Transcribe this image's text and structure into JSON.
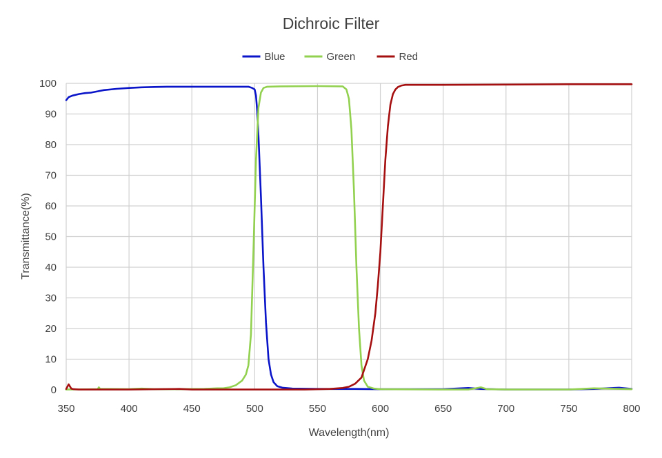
{
  "chart_data": {
    "type": "line",
    "title": "Dichroic Filter",
    "xlabel": "Wavelength(nm)",
    "ylabel": "Transmittance(%)",
    "xlim": [
      350,
      800
    ],
    "ylim": [
      0,
      100
    ],
    "xticks": [
      350,
      400,
      450,
      500,
      550,
      600,
      650,
      700,
      750,
      800
    ],
    "yticks": [
      0,
      10,
      20,
      30,
      40,
      50,
      60,
      70,
      80,
      90,
      100
    ],
    "grid": true,
    "legend": "top-center",
    "series": [
      {
        "name": "Blue",
        "color": "#0a14c8",
        "x": [
          350,
          352,
          355,
          360,
          365,
          370,
          375,
          380,
          390,
          400,
          410,
          420,
          430,
          440,
          450,
          460,
          470,
          480,
          490,
          495,
          498,
          500,
          501,
          502,
          503,
          505,
          507,
          509,
          511,
          513,
          515,
          518,
          522,
          530,
          550,
          580,
          600,
          650,
          670,
          680,
          700,
          750,
          770,
          790,
          800
        ],
        "y": [
          94.5,
          95.5,
          96.0,
          96.5,
          96.8,
          97.0,
          97.4,
          97.8,
          98.2,
          98.5,
          98.7,
          98.8,
          98.9,
          98.9,
          98.9,
          98.9,
          98.9,
          98.9,
          98.9,
          98.9,
          98.5,
          98.0,
          96.0,
          91.0,
          83.0,
          63.0,
          40.0,
          22.0,
          10.0,
          5.0,
          2.5,
          1.2,
          0.7,
          0.4,
          0.3,
          0.3,
          0.2,
          0.2,
          0.6,
          0.3,
          0.1,
          0.1,
          0.3,
          0.7,
          0.3
        ]
      },
      {
        "name": "Green",
        "color": "#92d050",
        "x": [
          350,
          375,
          376,
          377,
          400,
          410,
          420,
          440,
          460,
          470,
          475,
          480,
          485,
          490,
          493,
          495,
          497,
          499,
          501,
          503,
          505,
          507,
          510,
          520,
          550,
          570,
          573,
          575,
          577,
          579,
          581,
          583,
          585,
          587,
          590,
          595,
          600,
          650,
          670,
          680,
          685,
          700,
          750,
          770,
          800
        ],
        "y": [
          0.1,
          0.2,
          0.8,
          0.3,
          0.2,
          0.4,
          0.2,
          0.2,
          0.3,
          0.5,
          0.5,
          0.8,
          1.5,
          3.0,
          5.0,
          8.0,
          18.0,
          45.0,
          75.0,
          92.0,
          97.0,
          98.5,
          98.9,
          99.0,
          99.1,
          99.0,
          98.0,
          95.0,
          85.0,
          65.0,
          40.0,
          20.0,
          8.0,
          3.0,
          1.0,
          0.4,
          0.2,
          0.1,
          0.1,
          0.8,
          0.2,
          0.1,
          0.1,
          0.5,
          0.2
        ]
      },
      {
        "name": "Red",
        "color": "#a50f0f",
        "x": [
          350,
          352,
          354,
          356,
          360,
          400,
          440,
          450,
          500,
          540,
          560,
          570,
          575,
          580,
          585,
          590,
          593,
          596,
          598,
          600,
          602,
          604,
          606,
          608,
          610,
          612,
          614,
          617,
          620,
          650,
          700,
          750,
          800
        ],
        "y": [
          0.3,
          1.8,
          0.4,
          0.2,
          0.1,
          0.1,
          0.3,
          0.1,
          0.1,
          0.1,
          0.3,
          0.6,
          1.0,
          2.0,
          4.0,
          10.0,
          16.0,
          25.0,
          34.0,
          45.0,
          60.0,
          75.0,
          86.0,
          93.0,
          96.5,
          98.0,
          98.8,
          99.3,
          99.5,
          99.5,
          99.6,
          99.7,
          99.7
        ]
      }
    ]
  }
}
